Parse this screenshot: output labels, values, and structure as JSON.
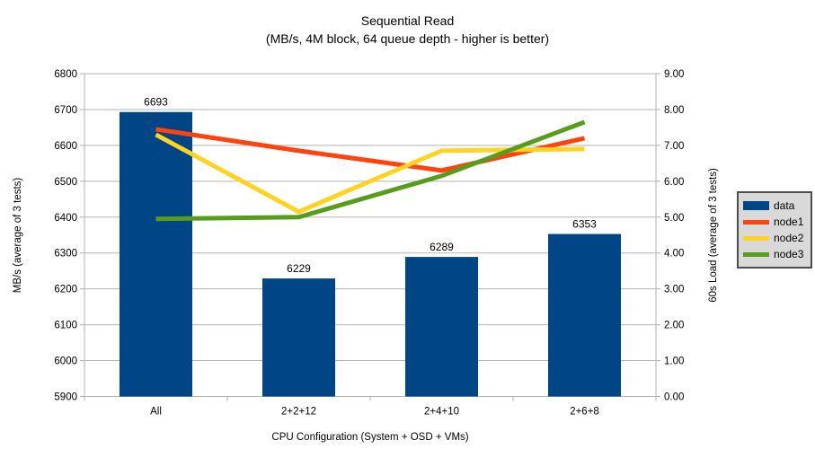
{
  "chart_data": {
    "type": "combo-bar-line",
    "title": "Sequential Read",
    "subtitle": "(MB/s, 4M block, 64 queue depth - higher is better)",
    "categories": [
      "All",
      "2+2+12",
      "2+4+10",
      "2+6+8"
    ],
    "bar_series": {
      "name": "data",
      "color": "#004586",
      "axis": "left",
      "values": [
        6693,
        6229,
        6289,
        6353
      ],
      "labels": [
        "6693",
        "6229",
        "6289",
        "6353"
      ]
    },
    "line_series": [
      {
        "name": "node1",
        "color": "#FF420E",
        "axis": "right",
        "values": [
          7.45,
          6.85,
          6.3,
          7.2
        ]
      },
      {
        "name": "node2",
        "color": "#FFD320",
        "axis": "right",
        "values": [
          7.3,
          5.15,
          6.85,
          6.9
        ]
      },
      {
        "name": "node3",
        "color": "#579D1C",
        "axis": "right",
        "values": [
          4.95,
          5.0,
          6.15,
          7.65
        ]
      }
    ],
    "left_axis": {
      "title": "MB/s (average of 3 tests)",
      "min": 5900,
      "max": 6800,
      "step": 100,
      "ticks": [
        "5900",
        "6000",
        "6100",
        "6200",
        "6300",
        "6400",
        "6500",
        "6600",
        "6700",
        "6800"
      ]
    },
    "right_axis": {
      "title": "60s Load (average of 3 tests)",
      "min": 0,
      "max": 9,
      "step": 1,
      "ticks": [
        "0.00",
        "1.00",
        "2.00",
        "3.00",
        "4.00",
        "5.00",
        "6.00",
        "7.00",
        "8.00",
        "9.00"
      ]
    },
    "x_axis": {
      "title": "CPU Configuration (System + OSD + VMs)"
    },
    "legend": {
      "position": "right",
      "background": "#d9d9d9",
      "border": "#4d4d4d",
      "entries": [
        {
          "label": "data",
          "color": "#004586",
          "marker": "rect"
        },
        {
          "label": "node1",
          "color": "#FF420E",
          "marker": "line"
        },
        {
          "label": "node2",
          "color": "#FFD320",
          "marker": "line"
        },
        {
          "label": "node3",
          "color": "#579D1C",
          "marker": "line"
        }
      ]
    },
    "grid_on": true,
    "grid_color": "#b3b3b3",
    "axis_color": "#b3b3b3",
    "text_color": "#000000",
    "background": "#ffffff"
  }
}
